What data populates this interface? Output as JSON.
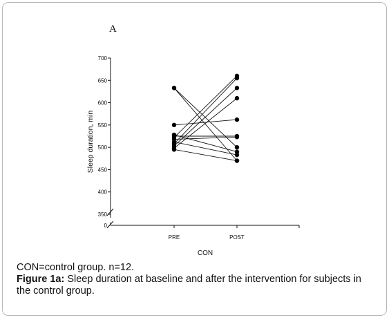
{
  "chart_data": {
    "type": "line",
    "panel_label": "A",
    "ylabel": "Sleep duration, min",
    "xlabel": "CON",
    "categories": [
      "PRE",
      "POST"
    ],
    "ylim": [
      350,
      700
    ],
    "yticks": [
      350,
      400,
      450,
      500,
      550,
      600,
      650,
      700
    ],
    "y_axis_break_label": "0",
    "axis_break": true,
    "series": [
      {
        "values": [
          633,
          500
        ]
      },
      {
        "values": [
          633,
          470
        ]
      },
      {
        "values": [
          550,
          562
        ]
      },
      {
        "values": [
          528,
          490
        ]
      },
      {
        "values": [
          525,
          525
        ]
      },
      {
        "values": [
          522,
          660
        ]
      },
      {
        "values": [
          518,
          523
        ]
      },
      {
        "values": [
          512,
          483
        ]
      },
      {
        "values": [
          508,
          655
        ]
      },
      {
        "values": [
          503,
          633
        ]
      },
      {
        "values": [
          498,
          610
        ]
      },
      {
        "values": [
          495,
          470
        ]
      }
    ]
  },
  "caption": {
    "note": "CON=control group. n=12.",
    "figure_label": "Figure 1a:",
    "figure_text": " Sleep duration at baseline and after the intervention for subjects in the control group."
  }
}
